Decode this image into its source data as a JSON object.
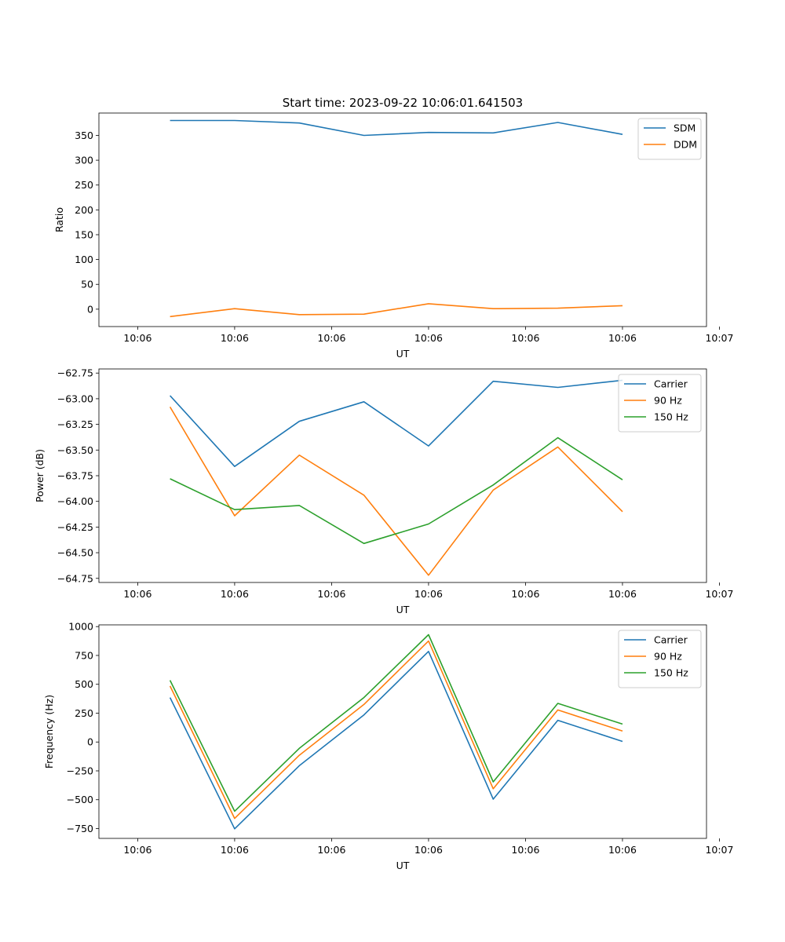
{
  "figure_title": "Start time: 2023-09-22 10:06:01.641503",
  "chart_data": [
    {
      "type": "line",
      "xlabel": "UT",
      "ylabel": "Ratio",
      "xlim": [
        -0.6,
        8.8
      ],
      "x_tick_values": [
        0,
        1.5,
        3,
        4.5,
        6,
        7.5,
        9
      ],
      "x_tick_labels": [
        "10:06",
        "10:06",
        "10:06",
        "10:06",
        "10:06",
        "10:06",
        "10:07"
      ],
      "ylim": [
        -35,
        395
      ],
      "y_ticks": [
        0,
        50,
        100,
        150,
        200,
        250,
        300,
        350
      ],
      "y_tick_labels": [
        "0",
        "50",
        "100",
        "150",
        "200",
        "250",
        "300",
        "350"
      ],
      "legend_position": "top-right",
      "x": [
        0.5,
        1.5,
        2.5,
        3.5,
        4.5,
        5.5,
        6.5,
        7.5
      ],
      "series": [
        {
          "name": "SDM",
          "color": "#1f77b4",
          "values": [
            380,
            380,
            375,
            350,
            356,
            355,
            376,
            352
          ]
        },
        {
          "name": "DDM",
          "color": "#ff7f0e",
          "values": [
            -15,
            1,
            -11,
            -10,
            11,
            1,
            2,
            7
          ]
        }
      ]
    },
    {
      "type": "line",
      "xlabel": "UT",
      "ylabel": "Power (dB)",
      "xlim": [
        -0.6,
        8.8
      ],
      "x_tick_values": [
        0,
        1.5,
        3,
        4.5,
        6,
        7.5,
        9
      ],
      "x_tick_labels": [
        "10:06",
        "10:06",
        "10:06",
        "10:06",
        "10:06",
        "10:06",
        "10:07"
      ],
      "ylim": [
        -64.79,
        -62.71
      ],
      "y_ticks": [
        -64.75,
        -64.5,
        -64.25,
        -64.0,
        -63.75,
        -63.5,
        -63.25,
        -63.0,
        -62.75
      ],
      "y_tick_labels": [
        "−64.75",
        "−64.50",
        "−64.25",
        "−64.00",
        "−63.75",
        "−63.50",
        "−63.25",
        "−63.00",
        "−62.75"
      ],
      "legend_position": "top-right",
      "x": [
        0.5,
        1.5,
        2.5,
        3.5,
        4.5,
        5.5,
        6.5,
        7.5
      ],
      "series": [
        {
          "name": "Carrier",
          "color": "#1f77b4",
          "values": [
            -62.97,
            -63.66,
            -63.22,
            -63.03,
            -63.46,
            -62.83,
            -62.89,
            -62.82
          ]
        },
        {
          "name": "90 Hz",
          "color": "#ff7f0e",
          "values": [
            -63.08,
            -64.14,
            -63.55,
            -63.94,
            -64.72,
            -63.89,
            -63.47,
            -64.1
          ]
        },
        {
          "name": "150 Hz",
          "color": "#2ca02c",
          "values": [
            -63.78,
            -64.08,
            -64.04,
            -64.41,
            -64.22,
            -63.84,
            -63.38,
            -63.79
          ]
        }
      ]
    },
    {
      "type": "line",
      "xlabel": "UT",
      "ylabel": "Frequency (Hz)",
      "xlim": [
        -0.6,
        8.8
      ],
      "x_tick_values": [
        0,
        1.5,
        3,
        4.5,
        6,
        7.5,
        9
      ],
      "x_tick_labels": [
        "10:06",
        "10:06",
        "10:06",
        "10:06",
        "10:06",
        "10:06",
        "10:07"
      ],
      "ylim": [
        -835,
        1015
      ],
      "y_ticks": [
        -750,
        -500,
        -250,
        0,
        250,
        500,
        750,
        1000
      ],
      "y_tick_labels": [
        "−750",
        "−500",
        "−250",
        "0",
        "250",
        "500",
        "750",
        "1000"
      ],
      "legend_position": "top-right",
      "x": [
        0.5,
        1.5,
        2.5,
        3.5,
        4.5,
        5.5,
        6.5,
        7.5
      ],
      "series": [
        {
          "name": "Carrier",
          "color": "#1f77b4",
          "values": [
            385,
            -752,
            -205,
            235,
            785,
            -495,
            188,
            5
          ]
        },
        {
          "name": "90 Hz",
          "color": "#ff7f0e",
          "values": [
            485,
            -662,
            -115,
            325,
            875,
            -405,
            278,
            95
          ]
        },
        {
          "name": "150 Hz",
          "color": "#2ca02c",
          "values": [
            535,
            -600,
            -55,
            385,
            930,
            -345,
            335,
            155
          ]
        }
      ]
    }
  ]
}
